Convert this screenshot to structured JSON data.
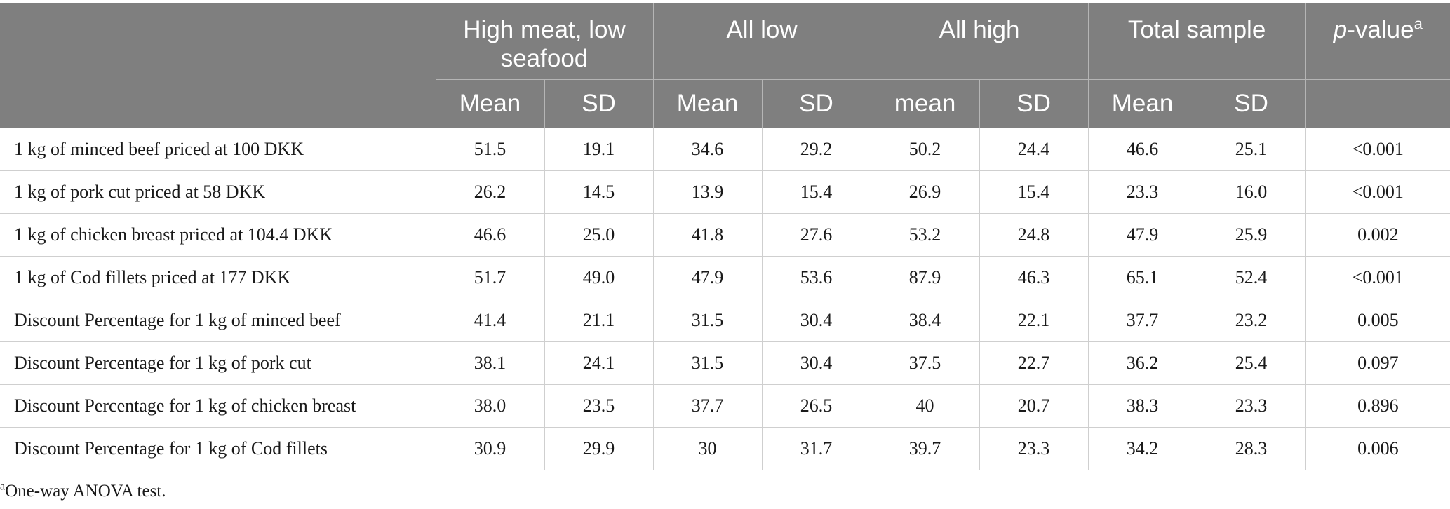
{
  "header": {
    "groups": [
      "High meat, low seafood",
      "All low",
      "All high",
      "Total sample"
    ],
    "pvalue_prefix": "p",
    "pvalue_suffix": "-value",
    "pvalue_sup": "a",
    "subheaders": [
      "Mean",
      "SD",
      "Mean",
      "SD",
      "mean",
      "SD",
      "Mean",
      "SD"
    ]
  },
  "rows": [
    {
      "label": "1 kg of minced beef priced at 100 DKK",
      "values": [
        "51.5",
        "19.1",
        "34.6",
        "29.2",
        "50.2",
        "24.4",
        "46.6",
        "25.1",
        "<0.001"
      ]
    },
    {
      "label": "1 kg of pork cut priced at 58 DKK",
      "values": [
        "26.2",
        "14.5",
        "13.9",
        "15.4",
        "26.9",
        "15.4",
        "23.3",
        "16.0",
        "<0.001"
      ]
    },
    {
      "label": "1 kg of chicken breast priced at 104.4 DKK",
      "values": [
        "46.6",
        "25.0",
        "41.8",
        "27.6",
        "53.2",
        "24.8",
        "47.9",
        "25.9",
        "0.002"
      ]
    },
    {
      "label": "1 kg of Cod fillets priced at 177 DKK",
      "values": [
        "51.7",
        "49.0",
        "47.9",
        "53.6",
        "87.9",
        "46.3",
        "65.1",
        "52.4",
        "<0.001"
      ]
    },
    {
      "label": "Discount Percentage for 1 kg of minced beef",
      "values": [
        "41.4",
        "21.1",
        "31.5",
        "30.4",
        "38.4",
        "22.1",
        "37.7",
        "23.2",
        "0.005"
      ]
    },
    {
      "label": "Discount Percentage for 1 kg of pork cut",
      "values": [
        "38.1",
        "24.1",
        "31.5",
        "30.4",
        "37.5",
        "22.7",
        "36.2",
        "25.4",
        "0.097"
      ]
    },
    {
      "label": "Discount Percentage for 1 kg of chicken breast",
      "values": [
        "38.0",
        "23.5",
        "37.7",
        "26.5",
        "40",
        "20.7",
        "38.3",
        "23.3",
        "0.896"
      ]
    },
    {
      "label": "Discount Percentage for 1 kg of Cod fillets",
      "values": [
        "30.9",
        "29.9",
        "30",
        "31.7",
        "39.7",
        "23.3",
        "34.2",
        "28.3",
        "0.006"
      ]
    }
  ],
  "footnote": {
    "marker": "a",
    "text": "One-way ANOVA test."
  },
  "colors": {
    "header_bg": "#7f7f7f",
    "header_text": "#ffffff",
    "grid": "#cfcfcf"
  }
}
